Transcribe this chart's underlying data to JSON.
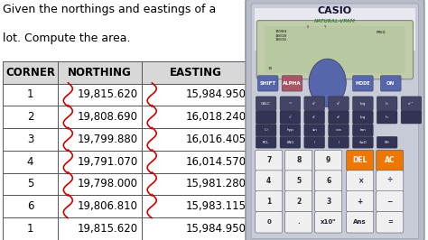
{
  "title_line1": "Given the northings and eastings of a",
  "title_line2": "lot. Compute the area.",
  "headers": [
    "CORNER",
    "NORTHING",
    "EASTING"
  ],
  "rows": [
    [
      "1",
      "19,815.620",
      "15,984.950"
    ],
    [
      "2",
      "19,808.690",
      "16,018.240"
    ],
    [
      "3",
      "19,799.880",
      "16,016.405"
    ],
    [
      "4",
      "19,791.070",
      "16,014.570"
    ],
    [
      "5",
      "19,798.000",
      "15,981.280"
    ],
    [
      "6",
      "19,806.810",
      "15,983.115"
    ],
    [
      "1",
      "19,815.620",
      "15,984.950"
    ]
  ],
  "bg_color": "#ffffff",
  "header_bg": "#d8d8d8",
  "table_line_color": "#555555",
  "text_color": "#000000",
  "title_fontsize": 9.0,
  "cell_fontsize": 8.5,
  "header_fontsize": 8.5,
  "curly_color": "#cc0000",
  "calc_body_color": "#c8ccd8",
  "calc_inner_color": "#d4d8e4",
  "calc_screen_color": "#c8d4b0",
  "btn_dark": "#5566aa",
  "btn_mid": "#6677aa",
  "btn_light": "#e0e0e8",
  "btn_orange": "#ee7700",
  "btn_white": "#f0f0f0"
}
